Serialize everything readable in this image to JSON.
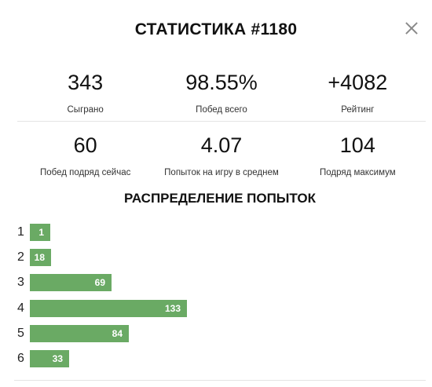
{
  "header": {
    "title": "СТАТИСТИКА #1180"
  },
  "stats": [
    {
      "value": "343",
      "label": "Сыграно"
    },
    {
      "value": "98.55%",
      "label": "Побед всего"
    },
    {
      "value": "+4082",
      "label": "Рейтинг"
    },
    {
      "value": "60",
      "label": "Побед подряд сейчас"
    },
    {
      "value": "4.07",
      "label": "Попыток на игру в среднем"
    },
    {
      "value": "104",
      "label": "Подряд максимум"
    }
  ],
  "distribution": {
    "title": "РАСПРЕДЕЛЕНИЕ ПОПЫТОК",
    "rows": [
      {
        "guess": "1",
        "count": "1",
        "value": 1
      },
      {
        "guess": "2",
        "count": "18",
        "value": 18
      },
      {
        "guess": "3",
        "count": "69",
        "value": 69
      },
      {
        "guess": "4",
        "count": "133",
        "value": 133
      },
      {
        "guess": "5",
        "count": "84",
        "value": 84
      },
      {
        "guess": "6",
        "count": "33",
        "value": 33
      }
    ]
  },
  "colors": {
    "bar": "#6aaa64",
    "close_icon": "#8a8a8a"
  },
  "icons": {
    "close": "close-icon"
  }
}
